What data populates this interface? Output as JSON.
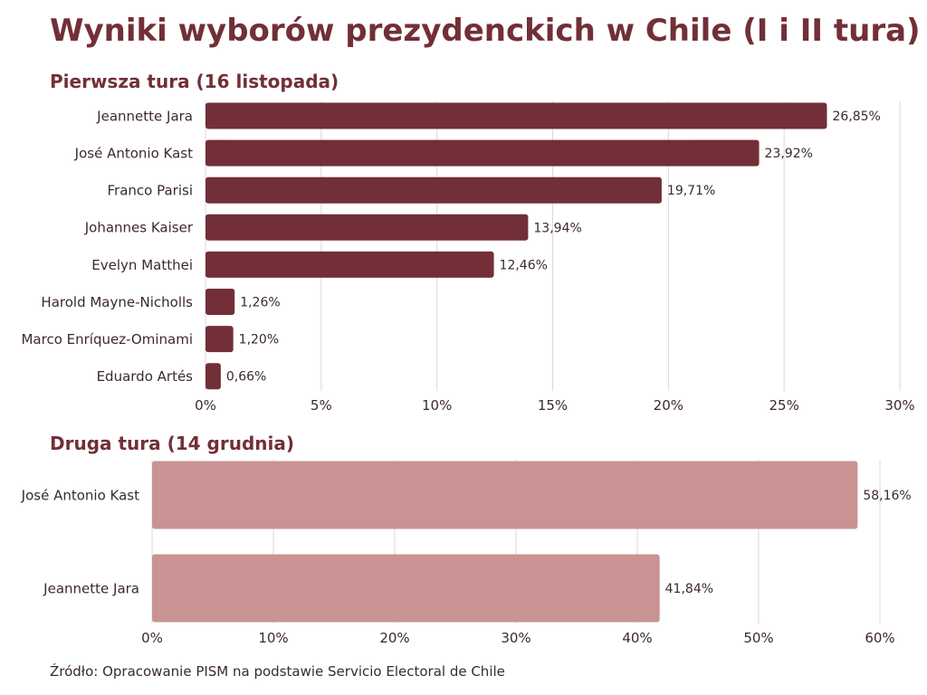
{
  "title": "Wyniki wyborów prezydenckich w Chile (I i II tura)",
  "source": "Źródło: Opracowanie PISM na podstawie Servicio Electoral de Chile",
  "colors": {
    "round1_bar": "#722f37",
    "round2_bar": "#c99393",
    "grid": "#d9d9d9",
    "text": "#3b2a2c",
    "heading": "#722f37"
  },
  "chart_data": [
    {
      "type": "bar",
      "orientation": "horizontal",
      "title": "Pierwsza tura (16 listopada)",
      "categories": [
        "Jeannette Jara",
        "José Antonio Kast",
        "Franco Parisi",
        "Johannes Kaiser",
        "Evelyn Matthei",
        "Harold Mayne-Nicholls",
        "Marco Enríquez-Ominami",
        "Eduardo Artés"
      ],
      "values": [
        26.85,
        23.92,
        19.71,
        13.94,
        12.46,
        1.26,
        1.2,
        0.66
      ],
      "value_labels": [
        "26,85%",
        "23,92%",
        "19,71%",
        "13,94%",
        "12,46%",
        "1,26%",
        "1,20%",
        "0,66%"
      ],
      "xlim": [
        0,
        30
      ],
      "xticks": [
        "0%",
        "5%",
        "10%",
        "15%",
        "20%",
        "25%",
        "30%"
      ],
      "grid": true
    },
    {
      "type": "bar",
      "orientation": "horizontal",
      "title": "Druga tura (14 grudnia)",
      "categories": [
        "José Antonio Kast",
        "Jeannette Jara"
      ],
      "values": [
        58.16,
        41.84
      ],
      "value_labels": [
        "58,16%",
        "41,84%"
      ],
      "xlim": [
        0,
        60
      ],
      "xticks": [
        "0%",
        "10%",
        "20%",
        "30%",
        "40%",
        "50%",
        "60%"
      ],
      "grid": true
    }
  ]
}
